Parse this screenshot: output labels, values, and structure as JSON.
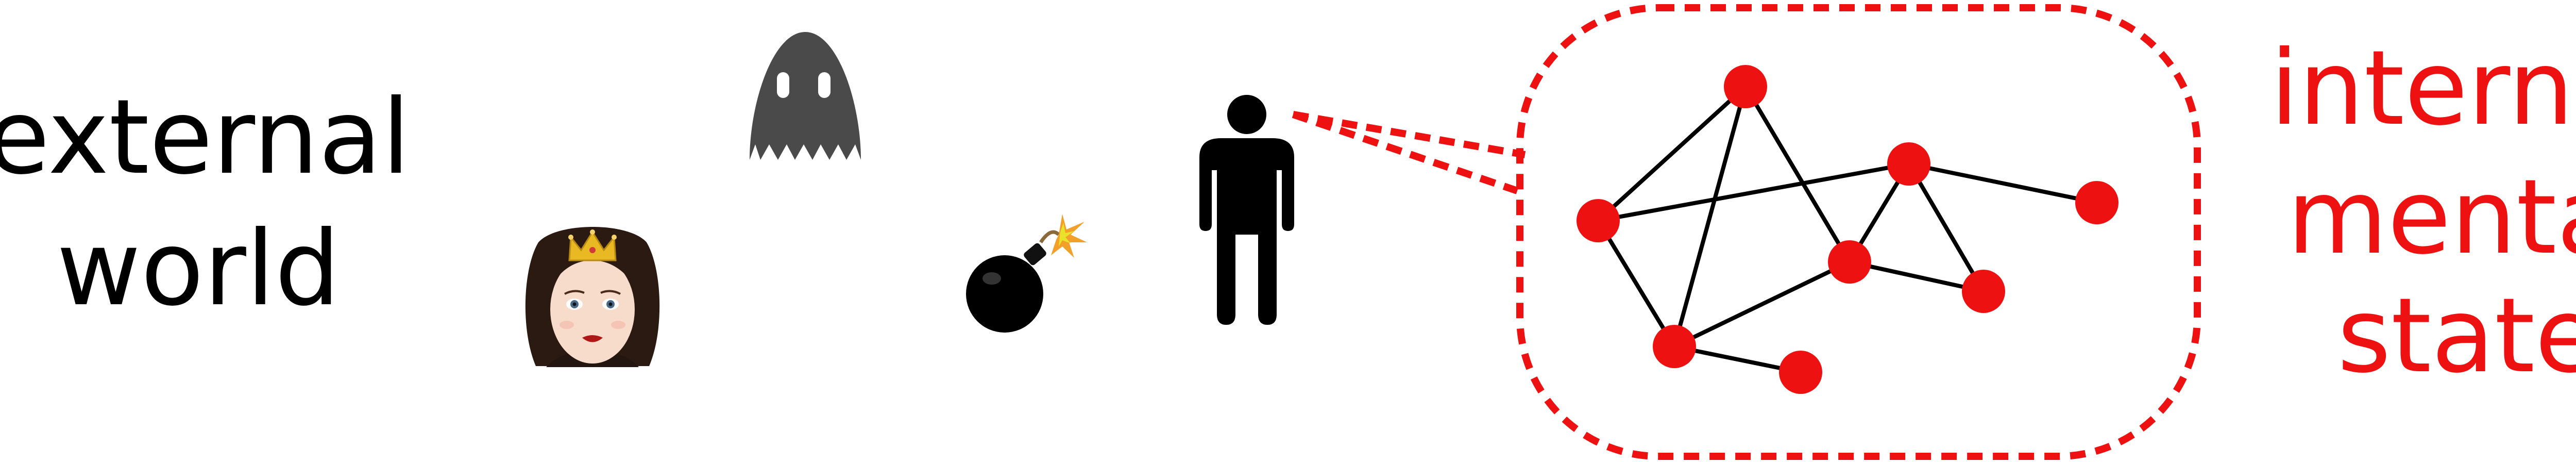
{
  "external_label": {
    "lines": [
      "external",
      "world"
    ],
    "color": "#000000"
  },
  "internal_label": {
    "lines": [
      "internal",
      "mental",
      "state"
    ],
    "color": "#ee1111"
  },
  "icons": [
    "princess-icon",
    "ghost-icon",
    "bomb-icon",
    "person-icon"
  ],
  "colors": {
    "node": "#ee1111",
    "edge": "#000000",
    "boundary": "#ee1111",
    "ghost": "#4a4a4a",
    "person": "#000000",
    "bomb": "#000000"
  },
  "network": {
    "nodes": [
      "n1",
      "n2",
      "n3",
      "n4",
      "n5",
      "n6",
      "n7",
      "n8"
    ],
    "edges": [
      [
        "n1",
        "n2"
      ],
      [
        "n1",
        "n5"
      ],
      [
        "n1",
        "n6"
      ],
      [
        "n2",
        "n3"
      ],
      [
        "n2",
        "n6"
      ],
      [
        "n3",
        "n4"
      ],
      [
        "n3",
        "n5"
      ],
      [
        "n3",
        "n7"
      ],
      [
        "n5",
        "n6"
      ],
      [
        "n5",
        "n7"
      ],
      [
        "n6",
        "n8"
      ]
    ]
  }
}
